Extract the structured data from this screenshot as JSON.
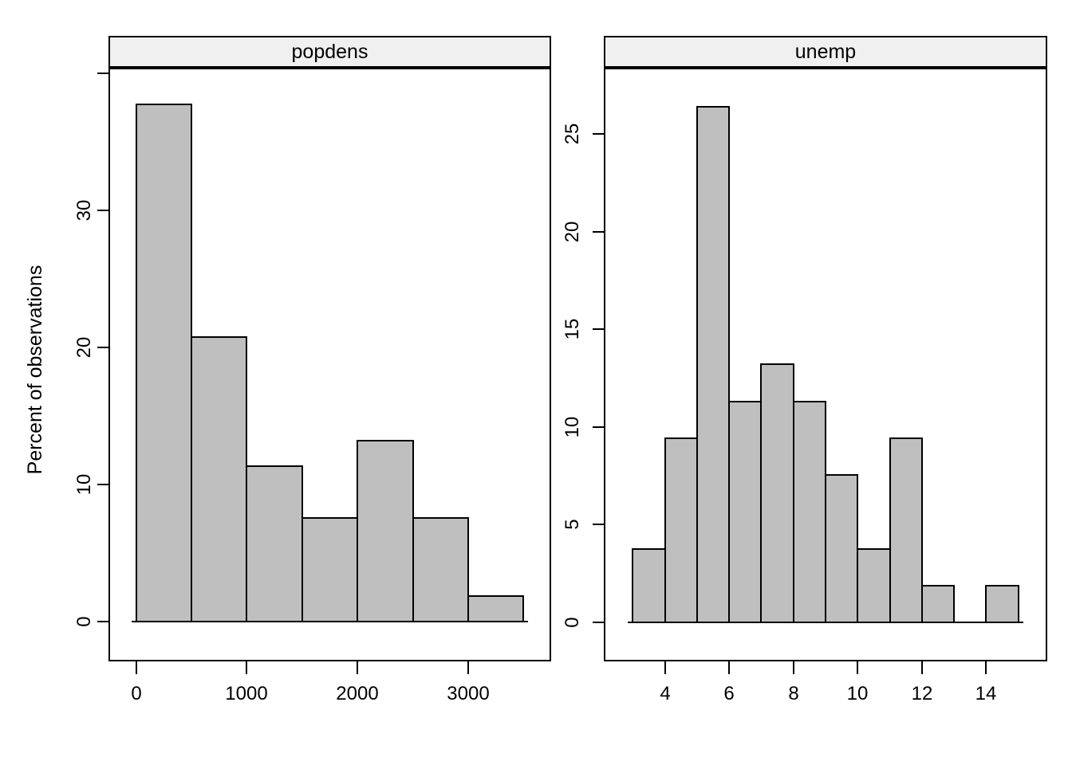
{
  "figure": {
    "ylabel": "Percent of observations"
  },
  "colors": {
    "bar_fill": "#bfbfbf",
    "bar_border": "#000000",
    "strip_fill": "#f0f0f0",
    "axis_line": "#000000",
    "background": "#ffffff"
  },
  "chart_data": [
    {
      "type": "bar",
      "subtype": "histogram",
      "title": "popdens",
      "ylabel": "Percent of observations",
      "bin_edges": [
        0,
        500,
        1000,
        1500,
        2000,
        2500,
        3000,
        3500
      ],
      "values": [
        37.74,
        20.75,
        11.32,
        7.55,
        13.21,
        7.55,
        1.89
      ],
      "x_ticks": [
        0,
        1000,
        2000,
        3000
      ],
      "y_ticks": [
        0,
        10,
        20,
        30
      ],
      "y_ticks_unlabeled": [
        40
      ],
      "xlim": [
        -250,
        3750
      ],
      "ylim": [
        -2.9,
        40.4
      ],
      "grid": false,
      "legend": false
    },
    {
      "type": "bar",
      "subtype": "histogram",
      "title": "unemp",
      "ylabel": "Percent of observations",
      "bin_edges": [
        3,
        4,
        5,
        6,
        7,
        8,
        9,
        10,
        11,
        12,
        13,
        14,
        15
      ],
      "values": [
        3.77,
        9.43,
        26.42,
        11.32,
        13.21,
        11.32,
        7.55,
        3.77,
        9.43,
        1.89,
        0,
        1.89
      ],
      "x_ticks": [
        4,
        6,
        8,
        10,
        12,
        14
      ],
      "y_ticks": [
        0,
        5,
        10,
        15,
        20,
        25
      ],
      "y_ticks_unlabeled": [],
      "xlim": [
        2.1,
        15.9
      ],
      "ylim": [
        -2.0,
        28.4
      ],
      "grid": false,
      "legend": false
    }
  ]
}
